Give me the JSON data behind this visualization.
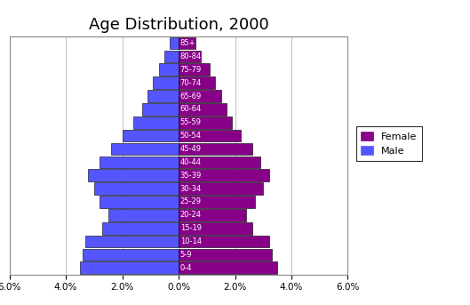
{
  "title": "Age Distribution, 2000",
  "age_groups": [
    "0-4",
    "5-9",
    "10-14",
    "15-19",
    "20-24",
    "25-29",
    "30-34",
    "35-39",
    "40-44",
    "45-49",
    "50-54",
    "55-59",
    "60-64",
    "65-69",
    "70-74",
    "75-79",
    "80-84",
    "85+"
  ],
  "male": [
    3.5,
    3.4,
    3.3,
    2.7,
    2.5,
    2.8,
    3.0,
    3.2,
    2.8,
    2.4,
    2.0,
    1.6,
    1.3,
    1.1,
    0.9,
    0.7,
    0.5,
    0.3
  ],
  "female": [
    3.5,
    3.3,
    3.2,
    2.6,
    2.4,
    2.7,
    3.0,
    3.2,
    2.9,
    2.6,
    2.2,
    1.9,
    1.7,
    1.5,
    1.3,
    1.1,
    0.8,
    0.6
  ],
  "male_color": "#5555ff",
  "female_color": "#880088",
  "xlim": 6.0,
  "xticklabels": [
    "6.0%",
    "4.0%",
    "2.0%",
    "0.0%",
    "2.0%",
    "4.0%",
    "6.0%"
  ],
  "background_color": "#ffffff",
  "bar_edge_color": "#000000",
  "title_fontsize": 13,
  "legend_female": "Female",
  "legend_male": "Male",
  "grid_color": "#c0c0c0"
}
